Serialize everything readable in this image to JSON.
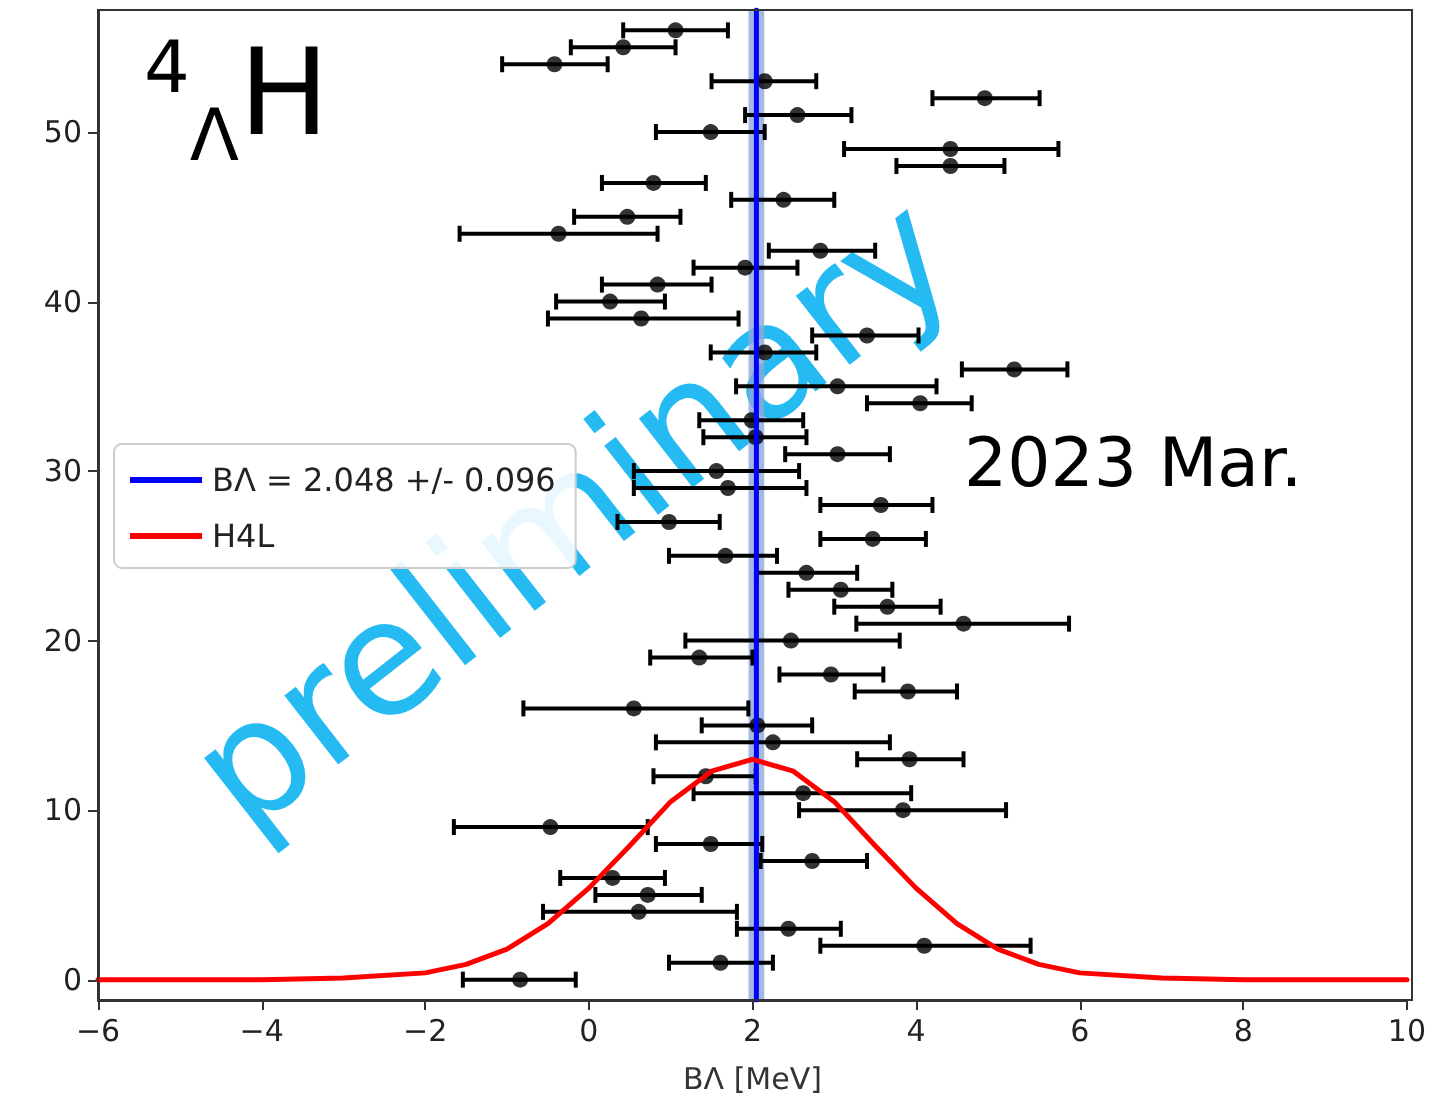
{
  "chart_data": {
    "type": "scatter",
    "xlabel": "BΛ [MeV]",
    "xlim": [
      -6,
      10
    ],
    "xticks": [
      -6,
      -4,
      -2,
      0,
      2,
      4,
      6,
      8,
      10
    ],
    "ylim": [
      -1.2,
      57.2
    ],
    "yticks": [
      0,
      10,
      20,
      30,
      40,
      50
    ],
    "grid": false,
    "legend": "left",
    "annotations": [
      "$^{4}$$_{Λ}$H",
      "2023 Mar.",
      "preliminary"
    ],
    "bands": [
      {
        "axis": "x",
        "from": 1.952,
        "to": 2.144,
        "color": "#8fa8d8"
      }
    ],
    "series": [
      {
        "marker": "circle",
        "color": "#000000",
        "x": [
          -0.84,
          1.61,
          4.1,
          2.44,
          0.61,
          0.72,
          0.29,
          2.73,
          1.49,
          -0.47,
          3.84,
          2.62,
          1.43,
          3.92,
          2.25,
          2.06,
          0.55,
          3.9,
          2.96,
          1.35,
          2.47,
          4.58,
          3.65,
          3.08,
          2.66,
          1.67,
          3.47,
          0.98,
          3.57,
          1.7,
          1.56,
          3.04,
          2.04,
          1.99,
          4.05,
          3.04,
          5.2,
          2.15,
          3.4,
          0.64,
          0.26,
          0.84,
          1.91,
          2.83,
          -0.37,
          0.47,
          2.38,
          0.79,
          4.42,
          4.42,
          1.49,
          2.55,
          4.84,
          2.15,
          -0.42,
          0.42,
          1.06
        ],
        "values": [
          0,
          1,
          2,
          3,
          4,
          5,
          6,
          7,
          8,
          9,
          10,
          11,
          12,
          13,
          14,
          15,
          16,
          17,
          18,
          19,
          20,
          21,
          22,
          23,
          24,
          25,
          26,
          27,
          28,
          29,
          30,
          31,
          32,
          33,
          34,
          35,
          36,
          37,
          38,
          39,
          40,
          41,
          42,
          43,
          44,
          45,
          46,
          47,
          48,
          49,
          50,
          51,
          52,
          53,
          54,
          55,
          56
        ],
        "xerrors": [
          [
            -1.54,
            -0.16
          ],
          [
            0.98,
            2.25
          ],
          [
            2.83,
            5.4
          ],
          [
            1.81,
            3.08
          ],
          [
            -0.56,
            1.81
          ],
          [
            0.08,
            1.38
          ],
          [
            -0.35,
            0.93
          ],
          [
            2.1,
            3.4
          ],
          [
            0.82,
            2.12
          ],
          [
            -1.65,
            0.72
          ],
          [
            2.57,
            5.1
          ],
          [
            1.28,
            3.94
          ],
          [
            0.79,
            2.04
          ],
          [
            3.28,
            4.58
          ],
          [
            0.82,
            3.68
          ],
          [
            1.38,
            2.73
          ],
          [
            -0.8,
            1.95
          ],
          [
            3.25,
            4.5
          ],
          [
            2.33,
            3.6
          ],
          [
            0.75,
            2.0
          ],
          [
            1.18,
            3.8
          ],
          [
            3.27,
            5.87
          ],
          [
            3.0,
            4.3
          ],
          [
            2.44,
            3.71
          ],
          [
            2.05,
            3.28
          ],
          [
            0.98,
            2.3
          ],
          [
            2.83,
            4.12
          ],
          [
            0.35,
            1.6
          ],
          [
            2.83,
            4.2
          ],
          [
            0.55,
            2.66
          ],
          [
            0.55,
            2.57
          ],
          [
            2.4,
            3.68
          ],
          [
            1.4,
            2.66
          ],
          [
            1.35,
            2.62
          ],
          [
            3.4,
            4.68
          ],
          [
            1.8,
            4.25
          ],
          [
            4.56,
            5.85
          ],
          [
            1.49,
            2.78
          ],
          [
            2.73,
            4.03
          ],
          [
            -0.5,
            1.83
          ],
          [
            -0.4,
            0.93
          ],
          [
            0.16,
            1.5
          ],
          [
            1.28,
            2.55
          ],
          [
            2.2,
            3.5
          ],
          [
            -1.58,
            0.84
          ],
          [
            -0.18,
            1.12
          ],
          [
            1.74,
            3.0
          ],
          [
            0.16,
            1.43
          ],
          [
            3.76,
            5.08
          ],
          [
            3.12,
            5.74
          ],
          [
            0.82,
            2.15
          ],
          [
            1.91,
            3.21
          ],
          [
            4.2,
            5.51
          ],
          [
            1.5,
            2.78
          ],
          [
            -1.06,
            0.23
          ],
          [
            -0.22,
            1.06
          ],
          [
            0.42,
            1.7
          ]
        ]
      },
      {
        "type": "line",
        "name": "BΛ = 2.048 +/- 0.096",
        "color": "#0000ff",
        "x": [
          2.048,
          2.048
        ],
        "values": [
          -1.2,
          57.2
        ]
      },
      {
        "type": "line",
        "name": "H4L",
        "color": "#ff0000",
        "x": [
          -6,
          -4,
          -3,
          -2,
          -1.5,
          -1,
          -0.5,
          0,
          0.5,
          1,
          1.5,
          2,
          2.5,
          3,
          3.5,
          4,
          4.5,
          5,
          5.5,
          6,
          7,
          8,
          10
        ],
        "values": [
          0,
          0,
          0.1,
          0.4,
          0.9,
          1.8,
          3.3,
          5.4,
          7.9,
          10.5,
          12.3,
          13,
          12.3,
          10.5,
          7.9,
          5.4,
          3.3,
          1.8,
          0.9,
          0.4,
          0.1,
          0,
          0
        ]
      }
    ]
  }
}
